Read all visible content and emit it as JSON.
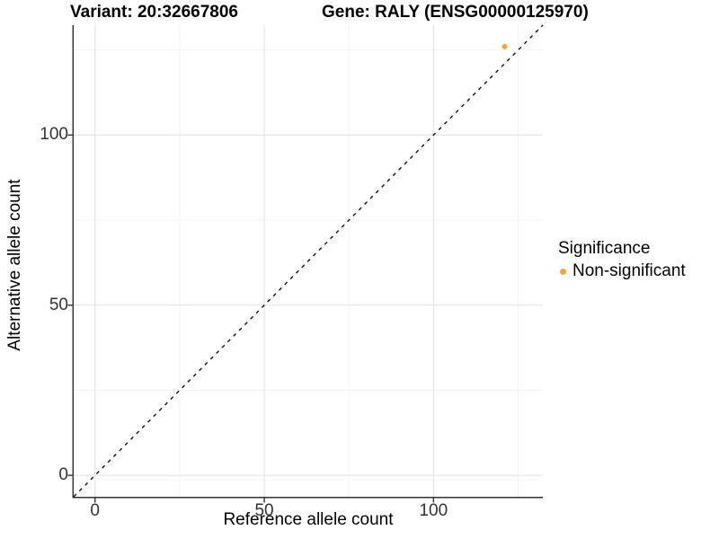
{
  "titles": {
    "left": "Variant: 20:32667806",
    "right": "Gene: RALY (ENSG00000125970)"
  },
  "chart_data": {
    "type": "scatter",
    "xlabel": "Reference allele count",
    "ylabel": "Alternative allele count",
    "xlim": [
      -6.3,
      132.3
    ],
    "ylim": [
      -6.3,
      132.3
    ],
    "x_major_ticks": [
      0,
      50,
      100
    ],
    "y_major_ticks": [
      0,
      50,
      100
    ],
    "x_minor_ticks": [
      25,
      75,
      125
    ],
    "y_minor_ticks": [
      25,
      75,
      125
    ],
    "grid": "major and minor gridlines, light gray on white panel",
    "reference_line": {
      "type": "identity y=x",
      "style": "dashed",
      "color": "#111111"
    },
    "series": [
      {
        "name": "Non-significant",
        "color": "#FBA338",
        "points": [
          {
            "x": 121,
            "y": 126
          }
        ]
      }
    ],
    "legend": {
      "title": "Significance",
      "position": "right",
      "entries": [
        {
          "label": "Non-significant",
          "color": "#FBA338"
        }
      ]
    }
  },
  "colors": {
    "background": "#FFFFFF",
    "grid_major": "#E4E4E4",
    "grid_minor": "#F2F2F2",
    "axis_line": "#333333",
    "tick_mark": "#333333",
    "tick_label": "#333333",
    "point": "#FBA338"
  }
}
